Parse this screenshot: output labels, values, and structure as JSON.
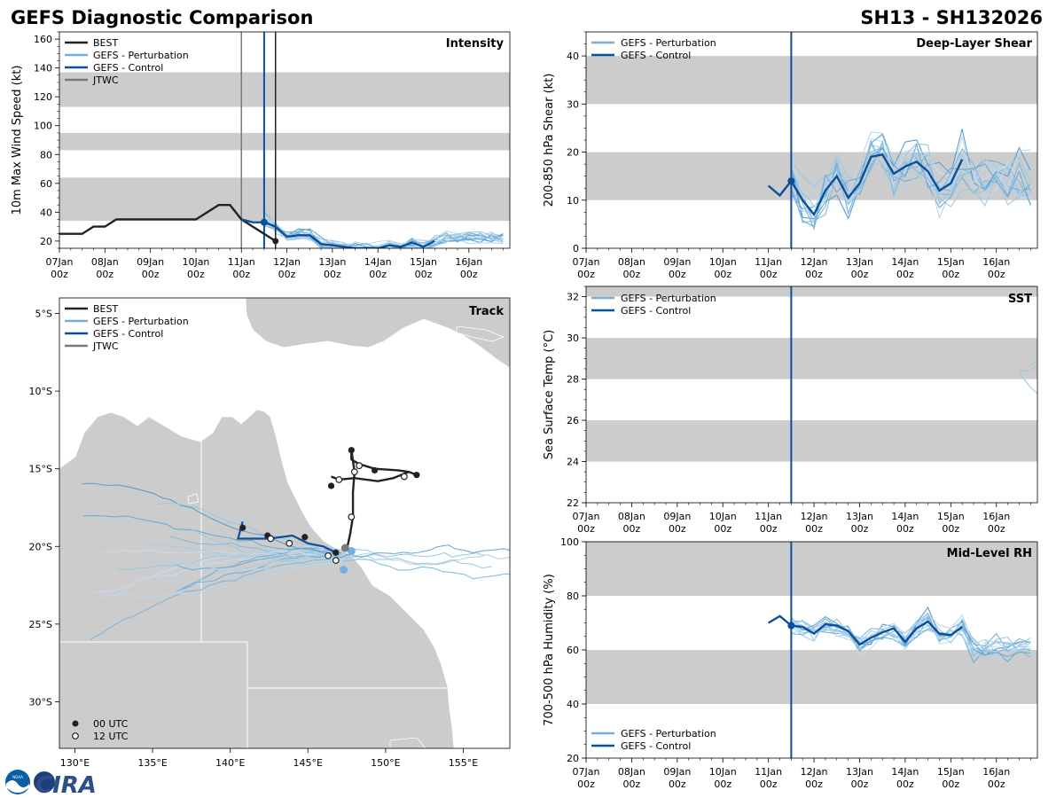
{
  "header": {
    "title_left": "GEFS Diagnostic Comparison",
    "title_right": "SH13 - SH132026"
  },
  "colors": {
    "best": "#222222",
    "perturbation": "#74b0dd",
    "control": "#0b4f9c",
    "jtwc": "#7a7a7a",
    "band": "#cccccc",
    "land": "#cccccc"
  },
  "time_axis": {
    "range": [
      0,
      9.9
    ],
    "ticks": [
      {
        "v": 0,
        "day": "07Jan",
        "hour": "00z"
      },
      {
        "v": 1,
        "day": "08Jan",
        "hour": "00z"
      },
      {
        "v": 2,
        "day": "09Jan",
        "hour": "00z"
      },
      {
        "v": 3,
        "day": "10Jan",
        "hour": "00z"
      },
      {
        "v": 4,
        "day": "11Jan",
        "hour": "00z"
      },
      {
        "v": 5,
        "day": "12Jan",
        "hour": "00z"
      },
      {
        "v": 6,
        "day": "13Jan",
        "hour": "00z"
      },
      {
        "v": 7,
        "day": "14Jan",
        "hour": "00z"
      },
      {
        "v": 8,
        "day": "15Jan",
        "hour": "00z"
      },
      {
        "v": 9,
        "day": "16Jan",
        "hour": "00z"
      }
    ],
    "init_time": 4.5
  },
  "legend_labels": {
    "best": "BEST",
    "perturbation": "GEFS - Perturbation",
    "control": "GEFS - Control",
    "jtwc": "JTWC",
    "utc00": "00 UTC",
    "utc12": "12 UTC"
  },
  "chart_data": [
    {
      "id": "intensity",
      "type": "line",
      "title": "Intensity",
      "ylabel": "10m Max Wind Speed (kt)",
      "ylim": [
        15,
        165
      ],
      "yticks": [
        20,
        40,
        60,
        80,
        100,
        120,
        140,
        160
      ],
      "bands": [
        [
          34,
          64
        ],
        [
          83,
          95
        ],
        [
          113,
          137
        ]
      ],
      "vlines": [
        {
          "x": 4.0,
          "color": "jtwc"
        },
        {
          "x": 4.5,
          "color": "control"
        },
        {
          "x": 4.75,
          "color": "best"
        }
      ],
      "best": {
        "x": [
          0,
          0.5,
          0.75,
          1.0,
          1.25,
          1.5,
          2.0,
          2.5,
          3.0,
          3.5,
          3.75,
          4.0,
          4.25,
          4.5,
          4.75
        ],
        "y": [
          25,
          25,
          30,
          30,
          35,
          35,
          35,
          35,
          35,
          45,
          45,
          35,
          30,
          25,
          20
        ]
      },
      "control": {
        "x": [
          4.0,
          4.25,
          4.5,
          4.75,
          5.0,
          5.25,
          5.5,
          5.75,
          6.0,
          6.25,
          6.5,
          6.75,
          7.0,
          7.25,
          7.5,
          7.75,
          8.0,
          8.25
        ],
        "y": [
          35,
          33,
          33,
          30,
          23,
          24,
          24,
          18,
          17,
          16,
          15,
          15,
          15,
          17,
          16,
          19,
          16,
          20
        ]
      },
      "control_marker": {
        "x": 4.5,
        "y": 33
      },
      "perturbation_count": 14
    },
    {
      "id": "shear",
      "type": "line",
      "title": "Deep-Layer Shear",
      "ylabel": "200-850 hPa Shear (kt)",
      "ylim": [
        0,
        45
      ],
      "yticks": [
        0,
        10,
        20,
        30,
        40
      ],
      "bands": [
        [
          10,
          20
        ],
        [
          30,
          40
        ]
      ],
      "vlines": [
        {
          "x": 4.5,
          "color": "control"
        }
      ],
      "control": {
        "x": [
          4.0,
          4.25,
          4.5,
          4.75,
          5.0,
          5.25,
          5.5,
          5.75,
          6.0,
          6.25,
          6.5,
          6.75,
          7.0,
          7.25,
          7.5,
          7.75,
          8.0,
          8.25
        ],
        "y": [
          13,
          11,
          14,
          10,
          7,
          12,
          15,
          10.5,
          13.5,
          19,
          19.5,
          15.5,
          17,
          18,
          16,
          12,
          13.5,
          18.5
        ]
      },
      "control_marker": {
        "x": 4.5,
        "y": 14
      },
      "perturbation_count": 14
    },
    {
      "id": "sst",
      "type": "line",
      "title": "SST",
      "ylabel": "Sea Surface Temp (°C)",
      "ylim": [
        22,
        32.5
      ],
      "yticks": [
        22,
        24,
        26,
        28,
        30,
        32
      ],
      "bands": [
        [
          24,
          26
        ],
        [
          28,
          30
        ],
        [
          32,
          32.5
        ]
      ],
      "vlines": [
        {
          "x": 4.5,
          "color": "control"
        }
      ],
      "perturbation": [
        {
          "x": [
            9.5,
            9.75,
            9.9
          ],
          "y": [
            28.4,
            28.4,
            28.7
          ]
        },
        {
          "x": [
            9.5,
            9.75,
            9.9
          ],
          "y": [
            28.3,
            27.6,
            27.3
          ]
        },
        {
          "x": [
            9.75,
            9.9
          ],
          "y": [
            28.7,
            28.9
          ]
        }
      ]
    },
    {
      "id": "rh",
      "type": "line",
      "title": "Mid-Level RH",
      "ylabel": "700-500 hPa Humidity (%)",
      "ylim": [
        20,
        100
      ],
      "yticks": [
        20,
        40,
        60,
        80,
        100
      ],
      "bands": [
        [
          40,
          60
        ],
        [
          80,
          100
        ]
      ],
      "vlines": [
        {
          "x": 4.5,
          "color": "control"
        }
      ],
      "control": {
        "x": [
          4.0,
          4.25,
          4.5,
          4.75,
          5.0,
          5.25,
          5.5,
          5.75,
          6.0,
          6.25,
          6.5,
          6.75,
          7.0,
          7.25,
          7.5,
          7.75,
          8.0,
          8.25
        ],
        "y": [
          70,
          72.5,
          69,
          68.5,
          66,
          69.5,
          69,
          67,
          62,
          64.5,
          66.5,
          68,
          63,
          68,
          70.5,
          66,
          65.5,
          68.5
        ]
      },
      "control_marker": {
        "x": 4.5,
        "y": 69
      },
      "perturbation_count": 14
    },
    {
      "id": "track",
      "type": "scatter",
      "title": "Track",
      "xlim": [
        129,
        158
      ],
      "ylim": [
        -33,
        -4
      ],
      "xticks": [
        {
          "v": 130,
          "label": "130°E"
        },
        {
          "v": 135,
          "label": "135°E"
        },
        {
          "v": 140,
          "label": "140°E"
        },
        {
          "v": 145,
          "label": "145°E"
        },
        {
          "v": 150,
          "label": "150°E"
        },
        {
          "v": 155,
          "label": "155°E"
        }
      ],
      "yticks": [
        {
          "v": -5,
          "label": "5°S"
        },
        {
          "v": -10,
          "label": "10°S"
        },
        {
          "v": -15,
          "label": "15°S"
        },
        {
          "v": -20,
          "label": "20°S"
        },
        {
          "v": -25,
          "label": "25°S"
        },
        {
          "v": -30,
          "label": "30°S"
        }
      ],
      "best_track": [
        [
          146.5,
          -15.5
        ],
        [
          147.0,
          -15.7
        ],
        [
          148.0,
          -15.6
        ],
        [
          149.5,
          -15.8
        ],
        [
          150.5,
          -15.6
        ],
        [
          151.5,
          -15.2
        ],
        [
          152.0,
          -15.4
        ],
        [
          151.5,
          -15.2
        ],
        [
          150.8,
          -15.1
        ],
        [
          149.3,
          -15.0
        ],
        [
          148.3,
          -14.7
        ],
        [
          147.8,
          -14.4
        ],
        [
          147.8,
          -13.8
        ],
        [
          148.0,
          -15.2
        ],
        [
          147.9,
          -16.5
        ],
        [
          147.9,
          -18.1
        ],
        [
          147.7,
          -19.3
        ],
        [
          147.5,
          -20.2
        ]
      ],
      "best_00utc": [
        [
          147.8,
          -13.8
        ],
        [
          149.3,
          -15.1
        ],
        [
          152.0,
          -15.4
        ],
        [
          146.5,
          -16.1
        ]
      ],
      "best_12utc": [
        [
          148.3,
          -14.8
        ],
        [
          148.0,
          -15.2
        ],
        [
          147.0,
          -15.7
        ],
        [
          151.2,
          -15.5
        ],
        [
          147.8,
          -18.1
        ]
      ],
      "control_track": [
        [
          140.8,
          -18.4
        ],
        [
          140.5,
          -19.5
        ],
        [
          142.5,
          -19.5
        ],
        [
          144.0,
          -19.3
        ],
        [
          145.0,
          -19.8
        ],
        [
          146.0,
          -20.0
        ],
        [
          146.8,
          -20.4
        ]
      ],
      "control_00utc": [
        [
          140.8,
          -18.8
        ],
        [
          142.4,
          -19.3
        ],
        [
          144.8,
          -19.4
        ],
        [
          146.8,
          -20.4
        ]
      ],
      "control_12utc": [
        [
          142.6,
          -19.5
        ],
        [
          143.8,
          -19.8
        ],
        [
          146.3,
          -20.6
        ],
        [
          146.8,
          -20.9
        ]
      ],
      "jtwc_point": [
        147.4,
        -20.1
      ],
      "terminal_points": [
        [
          147.3,
          -21.5
        ],
        [
          147.8,
          -20.3
        ]
      ]
    }
  ],
  "branding": {
    "noaa_text": "NOAA",
    "cira_text": "CIRA"
  }
}
